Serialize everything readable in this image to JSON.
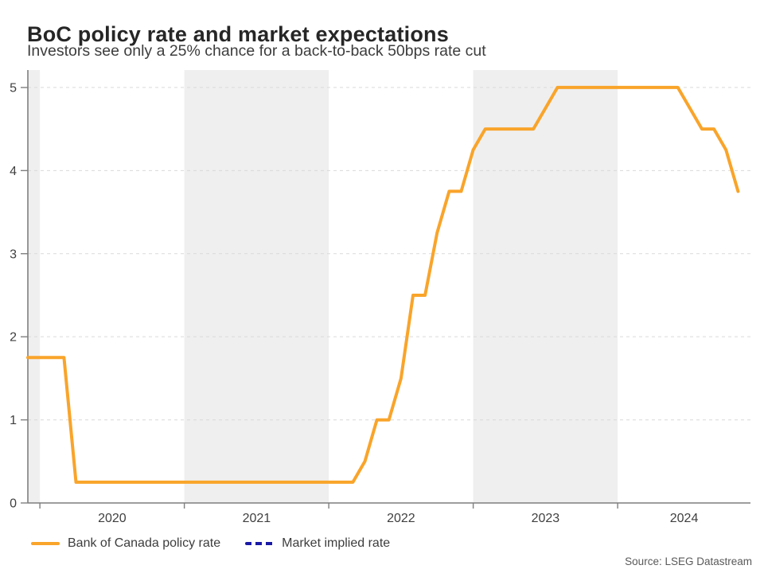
{
  "header": {
    "title": "BoC policy rate and market expectations",
    "subtitle": "Investors see only a 25% chance for a back-to-back 50bps rate cut"
  },
  "source_note": "Source: LSEG Datastream",
  "legend": {
    "items": [
      {
        "label": "Bank of Canada policy rate",
        "color": "#F9A42A",
        "style": "solid"
      },
      {
        "label": "Market implied rate",
        "color": "#1A1AA6",
        "style": "dashed"
      }
    ]
  },
  "chart_data": {
    "type": "line",
    "title": "BoC policy rate and market expectations",
    "xlabel": "",
    "ylabel": "",
    "x_unit": "month-end values, decimal years",
    "xlim": [
      2019.9167,
      2024.9195
    ],
    "ylim": [
      0,
      5.21
    ],
    "y_ticks": [
      0,
      1,
      2,
      3,
      4,
      5
    ],
    "x_year_ticks": [
      2020,
      2021,
      2022,
      2023,
      2024
    ],
    "x_tick_labels": [
      "2020",
      "2021",
      "2022",
      "2023",
      "2024"
    ],
    "grid": "horizontal-dashed",
    "legend_position": "bottom-left",
    "band_color": "#EFEFEF",
    "grid_color": "#DADADA",
    "axis_color": "#7F7F7F",
    "shaded_year_bands": [
      [
        2019.9167,
        2020
      ],
      [
        2021,
        2022
      ],
      [
        2023,
        2024
      ]
    ],
    "series": [
      {
        "name": "Bank of Canada policy rate",
        "color": "#F9A42A",
        "line_style": "solid",
        "points": [
          [
            "2019-11",
            1.75
          ],
          [
            "2019-12",
            1.75
          ],
          [
            "2020-01",
            1.75
          ],
          [
            "2020-02",
            1.75
          ],
          [
            "2020-03",
            0.25
          ],
          [
            "2020-04",
            0.25
          ],
          [
            "2020-05",
            0.25
          ],
          [
            "2020-06",
            0.25
          ],
          [
            "2020-07",
            0.25
          ],
          [
            "2020-08",
            0.25
          ],
          [
            "2020-09",
            0.25
          ],
          [
            "2020-10",
            0.25
          ],
          [
            "2020-11",
            0.25
          ],
          [
            "2020-12",
            0.25
          ],
          [
            "2021-01",
            0.25
          ],
          [
            "2021-02",
            0.25
          ],
          [
            "2021-03",
            0.25
          ],
          [
            "2021-04",
            0.25
          ],
          [
            "2021-05",
            0.25
          ],
          [
            "2021-06",
            0.25
          ],
          [
            "2021-07",
            0.25
          ],
          [
            "2021-08",
            0.25
          ],
          [
            "2021-09",
            0.25
          ],
          [
            "2021-10",
            0.25
          ],
          [
            "2021-11",
            0.25
          ],
          [
            "2021-12",
            0.25
          ],
          [
            "2022-01",
            0.25
          ],
          [
            "2022-02",
            0.25
          ],
          [
            "2022-03",
            0.5
          ],
          [
            "2022-04",
            1.0
          ],
          [
            "2022-05",
            1.0
          ],
          [
            "2022-06",
            1.5
          ],
          [
            "2022-07",
            2.5
          ],
          [
            "2022-08",
            2.5
          ],
          [
            "2022-09",
            3.25
          ],
          [
            "2022-10",
            3.75
          ],
          [
            "2022-11",
            3.75
          ],
          [
            "2022-12",
            4.25
          ],
          [
            "2023-01",
            4.5
          ],
          [
            "2023-02",
            4.5
          ],
          [
            "2023-03",
            4.5
          ],
          [
            "2023-04",
            4.5
          ],
          [
            "2023-05",
            4.5
          ],
          [
            "2023-06",
            4.75
          ],
          [
            "2023-07",
            5.0
          ],
          [
            "2023-08",
            5.0
          ],
          [
            "2023-09",
            5.0
          ],
          [
            "2023-10",
            5.0
          ],
          [
            "2023-11",
            5.0
          ],
          [
            "2023-12",
            5.0
          ],
          [
            "2024-01",
            5.0
          ],
          [
            "2024-02",
            5.0
          ],
          [
            "2024-03",
            5.0
          ],
          [
            "2024-04",
            5.0
          ],
          [
            "2024-05",
            5.0
          ],
          [
            "2024-06",
            4.75
          ],
          [
            "2024-07",
            4.5
          ],
          [
            "2024-08",
            4.5
          ],
          [
            "2024-09",
            4.25
          ],
          [
            "2024-10",
            3.75
          ]
        ]
      },
      {
        "name": "Market implied rate",
        "color": "#1A1AA6",
        "line_style": "dashed",
        "points": []
      }
    ]
  }
}
